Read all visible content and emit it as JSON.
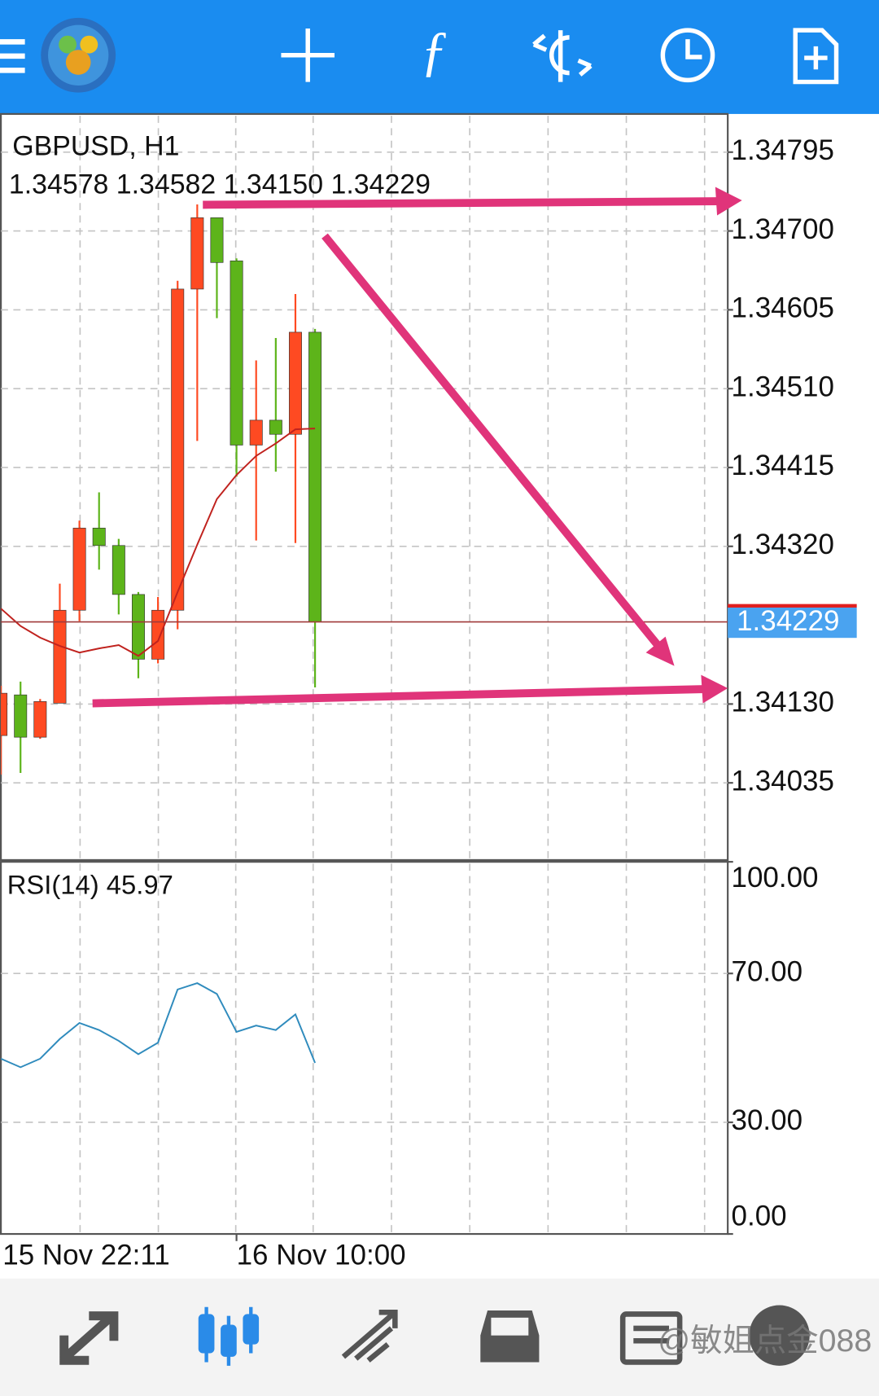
{
  "chart_data": [
    {
      "type": "candlestick",
      "title": "GBPUSD, H1",
      "ohlc_label": "1.34578 1.34582 1.34150 1.34229",
      "x_start_label": "15 Nov 22:11",
      "categories": [
        null,
        null,
        null,
        null,
        null,
        null,
        null,
        null,
        null,
        null,
        null,
        null,
        "16 Nov 10:00",
        null,
        null,
        null,
        null
      ],
      "open": [
        1.34092,
        1.34141,
        1.3409,
        1.34131,
        1.34243,
        1.34342,
        1.34321,
        1.34262,
        1.34184,
        1.34243,
        1.3463,
        1.34716,
        1.34664,
        1.34442,
        1.34472,
        1.34455,
        1.34578
      ],
      "high": [
        1.34152,
        1.34157,
        1.34136,
        1.34275,
        1.34351,
        1.34385,
        1.34329,
        1.34265,
        1.34259,
        1.3464,
        1.34732,
        1.34716,
        1.34667,
        1.34544,
        1.34571,
        1.34624,
        1.34582
      ],
      "low": [
        1.34045,
        1.34047,
        1.34088,
        1.34131,
        1.3423,
        1.34292,
        1.34238,
        1.34161,
        1.34179,
        1.3422,
        1.34447,
        1.34595,
        1.34404,
        1.34327,
        1.3441,
        1.34324,
        1.3415
      ],
      "close": [
        1.34143,
        1.3409,
        1.34133,
        1.34243,
        1.34342,
        1.34321,
        1.34262,
        1.34184,
        1.34243,
        1.3463,
        1.34716,
        1.34662,
        1.34442,
        1.34472,
        1.34455,
        1.34578,
        1.34229
      ],
      "up_color": "#fe4a22",
      "down_color": "#5db41a",
      "ma": {
        "color": "#c0221e",
        "values": [
          1.34245,
          1.34224,
          1.3421,
          1.342,
          1.34192,
          1.34197,
          1.34201,
          1.34188,
          1.34206,
          1.34265,
          1.34322,
          1.34377,
          1.34406,
          1.34429,
          1.34444,
          1.34461,
          1.34462
        ]
      },
      "current_price": 1.34229,
      "ylim": [
        1.33942,
        1.34841
      ],
      "yticks": [
        1.34795,
        {
          "value": 1.347,
          "label": "1.34700"
        },
        1.34605,
        {
          "value": 1.3451,
          "label": "1.34510"
        },
        1.34415,
        {
          "value": 1.3432,
          "label": "1.34320"
        },
        {
          "value": 1.3413,
          "label": "1.34130"
        },
        1.34035
      ],
      "grid": true
    },
    {
      "type": "line",
      "title": "RSI(14) 45.97",
      "color": "#2f8bbd",
      "values": [
        47.1,
        44.8,
        47.1,
        52.4,
        56.7,
        54.8,
        51.9,
        48.3,
        51.4,
        65.7,
        67.4,
        64.5,
        54.3,
        56.0,
        54.8,
        59.0,
        45.97
      ],
      "ylim": [
        0,
        100
      ],
      "yticks": [
        {
          "value": 100,
          "label": "100.00"
        },
        {
          "value": 70,
          "label": "70.00"
        },
        {
          "value": 30,
          "label": "30.00"
        },
        {
          "value": 0,
          "label": "0.00"
        }
      ],
      "grid": true
    }
  ],
  "watermark": "@敏姐点金088"
}
